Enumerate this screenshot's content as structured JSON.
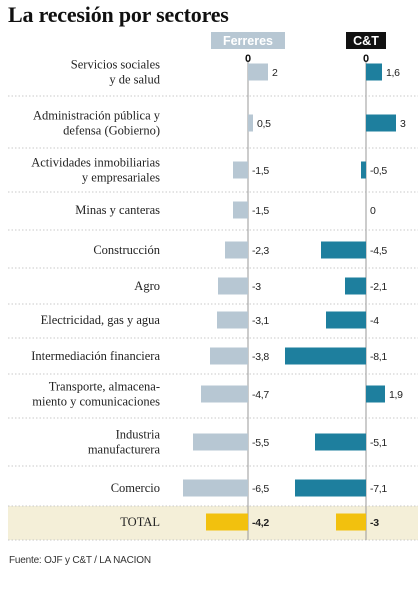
{
  "title": "La recesión por sectores",
  "source": "Fuente:  OJF y C&T / LA NACION",
  "colors": {
    "ferreres": "#b7c7d3",
    "cyt": "#1e7f9e",
    "total": "#f2c10e",
    "total_band": "#f4efd8",
    "grid": "#c9c9c9",
    "ferreres_header_bg": "#b7c7d3",
    "cyt_header_bg": "#111111"
  },
  "chart_data": {
    "type": "bar",
    "orientation": "horizontal",
    "title": "La recesión por sectores",
    "zero_label": "0",
    "categories": [
      [
        "Servicios sociales",
        "y de salud"
      ],
      [
        "Administración pública y",
        "defensa (Gobierno)"
      ],
      [
        "Actividades inmobiliarias",
        "y empresariales"
      ],
      [
        "Minas y canteras"
      ],
      [
        "Construcción"
      ],
      [
        "Agro"
      ],
      [
        "Electricidad, gas y agua"
      ],
      [
        "Intermediación financiera"
      ],
      [
        "Transporte, almacena-",
        "miento y comunicaciones"
      ],
      [
        "Industria",
        "manufacturera"
      ],
      [
        "Comercio"
      ],
      [
        "TOTAL"
      ]
    ],
    "series": [
      {
        "name": "Ferreres",
        "values": [
          2,
          0.5,
          -1.5,
          -1.5,
          -2.3,
          -3,
          -3.1,
          -3.8,
          -4.7,
          -5.5,
          -6.5,
          -4.2
        ],
        "labels": [
          "2",
          "0,5",
          "-1,5",
          "-1,5",
          "-2,3",
          "-3",
          "-3,1",
          "-3,8",
          "-4,7",
          "-5,5",
          "-6,5",
          "-4,2"
        ]
      },
      {
        "name": "C&T",
        "values": [
          1.6,
          3,
          -0.5,
          0,
          -4.5,
          -2.1,
          -4,
          -8.1,
          1.9,
          -5.1,
          -7.1,
          -3
        ],
        "labels": [
          "1,6",
          "3",
          "-0,5",
          "0",
          "-4,5",
          "-2,1",
          "-4",
          "-8,1",
          "1,9",
          "-5,1",
          "-7,1",
          "-3"
        ]
      }
    ],
    "highlight_last_row": true
  }
}
